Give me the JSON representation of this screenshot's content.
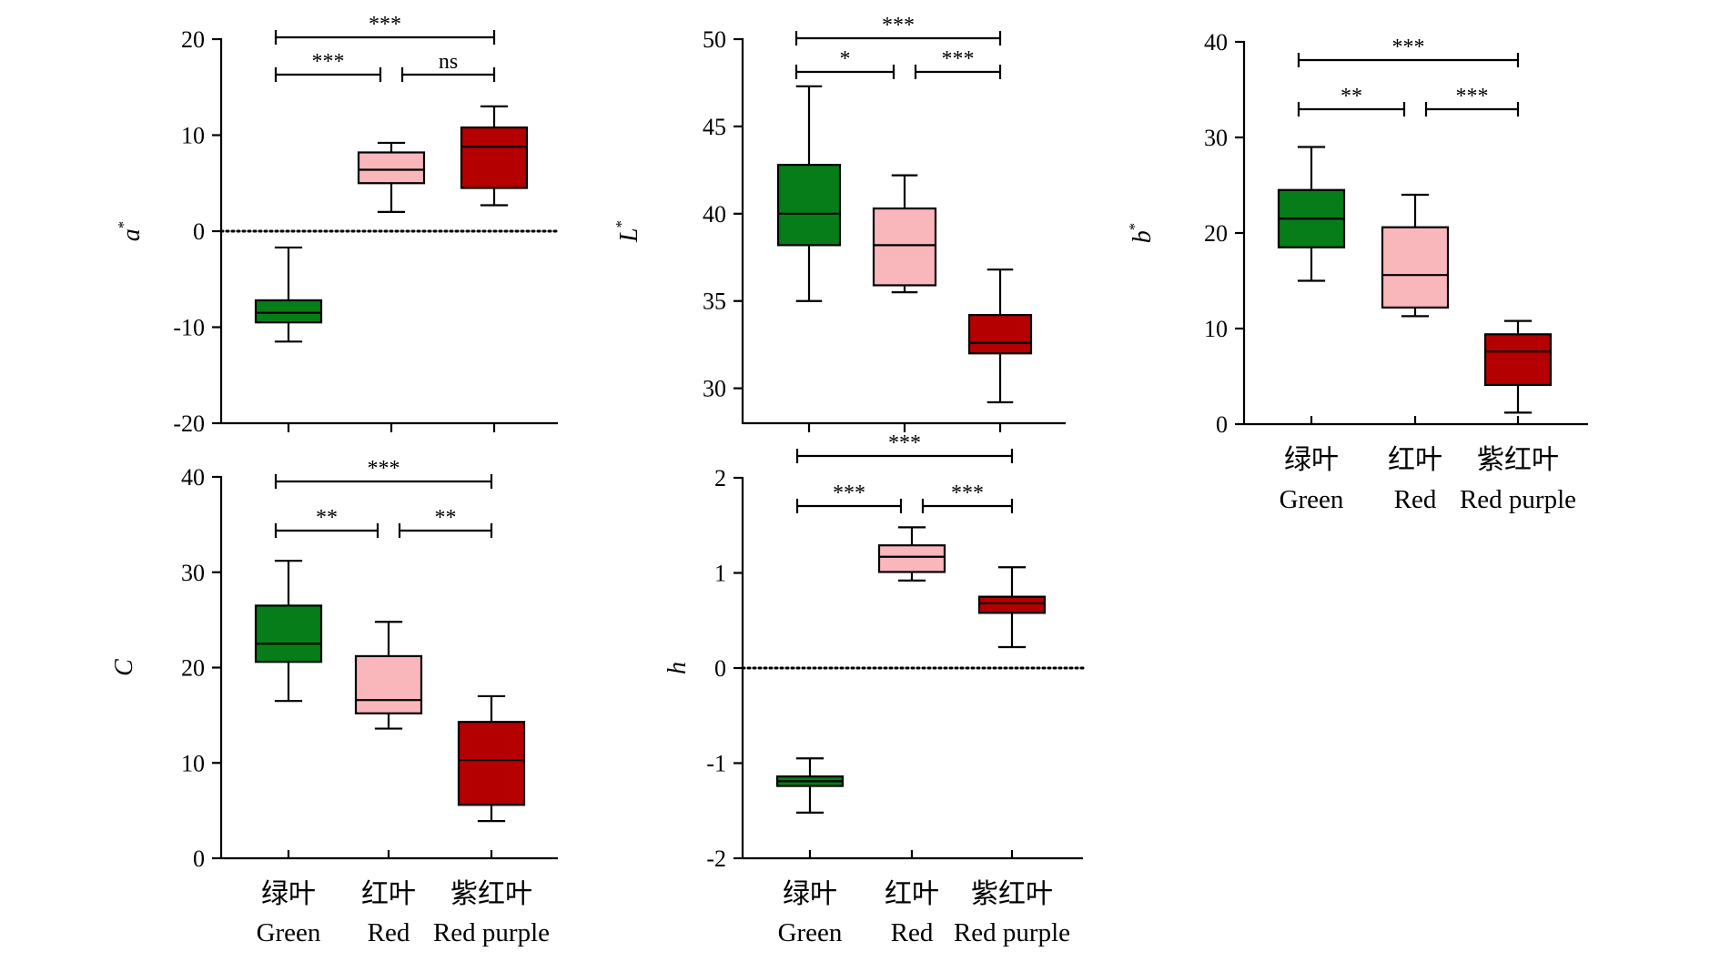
{
  "colors": {
    "green": "#067d18",
    "red": "#f9b6bb",
    "red_purple": "#b40000",
    "stroke": "#000000"
  },
  "chart_data": [
    {
      "type": "box",
      "panel": "a",
      "ylabel": "a",
      "ylabel_sup": "*",
      "ylim": [
        -20,
        20
      ],
      "yticks": [
        -20,
        -10,
        0,
        10,
        20
      ],
      "ytick_labels": [
        "-20",
        "-10",
        "0",
        "10",
        "20"
      ],
      "reference_line": 0,
      "show_categories": false,
      "categories_zh": [],
      "categories_en": [],
      "boxes": [
        {
          "color": "green",
          "min": -11.5,
          "q1": -9.5,
          "median": -8.5,
          "q3": -7.2,
          "max": -1.7
        },
        {
          "color": "red",
          "min": 2.0,
          "q1": 5.0,
          "median": 6.4,
          "q3": 8.2,
          "max": 9.2
        },
        {
          "color": "red_purple",
          "min": 2.7,
          "q1": 4.5,
          "median": 8.8,
          "q3": 10.8,
          "max": 13.0
        }
      ],
      "comparisons": [
        {
          "from": 0,
          "to": 1,
          "level": 0,
          "label": "***"
        },
        {
          "from": 1,
          "to": 2,
          "level": 0,
          "label": "ns"
        },
        {
          "from": 0,
          "to": 2,
          "level": 1,
          "label": "***"
        }
      ]
    },
    {
      "type": "box",
      "panel": "L",
      "ylabel": "L",
      "ylabel_sup": "*",
      "ylim": [
        28,
        50
      ],
      "yticks": [
        30,
        35,
        40,
        45,
        50
      ],
      "ytick_labels": [
        "30",
        "35",
        "40",
        "45",
        "50"
      ],
      "reference_line": null,
      "show_categories": false,
      "categories_zh": [],
      "categories_en": [],
      "boxes": [
        {
          "color": "green",
          "min": 35.0,
          "q1": 38.2,
          "median": 40.0,
          "q3": 42.8,
          "max": 47.3
        },
        {
          "color": "red",
          "min": 35.5,
          "q1": 35.9,
          "median": 38.2,
          "q3": 40.3,
          "max": 42.2
        },
        {
          "color": "red_purple",
          "min": 29.2,
          "q1": 32.0,
          "median": 32.6,
          "q3": 34.2,
          "max": 36.8
        }
      ],
      "comparisons": [
        {
          "from": 0,
          "to": 1,
          "level": 0,
          "label": "*"
        },
        {
          "from": 1,
          "to": 2,
          "level": 0,
          "label": "***"
        },
        {
          "from": 0,
          "to": 2,
          "level": 1,
          "label": "***"
        }
      ]
    },
    {
      "type": "box",
      "panel": "b",
      "ylabel": "b",
      "ylabel_sup": "*",
      "ylim": [
        0,
        40
      ],
      "yticks": [
        0,
        10,
        20,
        30,
        40
      ],
      "ytick_labels": [
        "0",
        "10",
        "20",
        "30",
        "40"
      ],
      "reference_line": null,
      "show_categories": true,
      "categories_zh": [
        "绿叶",
        "红叶",
        "紫红叶"
      ],
      "categories_en": [
        "Green",
        "Red",
        "Red purple"
      ],
      "boxes": [
        {
          "color": "green",
          "min": 15.0,
          "q1": 18.5,
          "median": 21.5,
          "q3": 24.5,
          "max": 29.0
        },
        {
          "color": "red",
          "min": 11.3,
          "q1": 12.2,
          "median": 15.6,
          "q3": 20.6,
          "max": 24.0
        },
        {
          "color": "red_purple",
          "min": 1.2,
          "q1": 4.1,
          "median": 7.6,
          "q3": 9.4,
          "max": 10.8
        }
      ],
      "comparisons": [
        {
          "from": 0,
          "to": 1,
          "level": 0,
          "label": "**"
        },
        {
          "from": 1,
          "to": 2,
          "level": 0,
          "label": "***"
        },
        {
          "from": 0,
          "to": 2,
          "level": 1,
          "label": "***"
        }
      ]
    },
    {
      "type": "box",
      "panel": "C",
      "ylabel": "C",
      "ylabel_sup": "",
      "ylim": [
        0,
        40
      ],
      "yticks": [
        0,
        10,
        20,
        30,
        40
      ],
      "ytick_labels": [
        "0",
        "10",
        "20",
        "30",
        "40"
      ],
      "reference_line": null,
      "show_categories": true,
      "categories_zh": [
        "绿叶",
        "红叶",
        "紫红叶"
      ],
      "categories_en": [
        "Green",
        "Red",
        "Red purple"
      ],
      "boxes": [
        {
          "color": "green",
          "min": 16.5,
          "q1": 20.6,
          "median": 22.5,
          "q3": 26.5,
          "max": 31.2
        },
        {
          "color": "red",
          "min": 13.6,
          "q1": 15.2,
          "median": 16.6,
          "q3": 21.2,
          "max": 24.8
        },
        {
          "color": "red_purple",
          "min": 3.9,
          "q1": 5.6,
          "median": 10.3,
          "q3": 14.3,
          "max": 17.0
        }
      ],
      "comparisons": [
        {
          "from": 0,
          "to": 1,
          "level": 0,
          "label": "**"
        },
        {
          "from": 1,
          "to": 2,
          "level": 0,
          "label": "**"
        },
        {
          "from": 0,
          "to": 2,
          "level": 1,
          "label": "***"
        }
      ]
    },
    {
      "type": "box",
      "panel": "h",
      "ylabel": "h",
      "ylabel_sup": "",
      "ylim": [
        -2,
        2
      ],
      "yticks": [
        -2,
        -1,
        0,
        1,
        2
      ],
      "ytick_labels": [
        "-2",
        "-1",
        "0",
        "1",
        "2"
      ],
      "reference_line": 0,
      "show_categories": true,
      "categories_zh": [
        "绿叶",
        "红叶",
        "紫红叶"
      ],
      "categories_en": [
        "Green",
        "Red",
        "Red purple"
      ],
      "boxes": [
        {
          "color": "green",
          "min": -1.52,
          "q1": -1.24,
          "median": -1.19,
          "q3": -1.14,
          "max": -0.95
        },
        {
          "color": "red",
          "min": 0.92,
          "q1": 1.01,
          "median": 1.17,
          "q3": 1.29,
          "max": 1.48
        },
        {
          "color": "red_purple",
          "min": 0.22,
          "q1": 0.58,
          "median": 0.68,
          "q3": 0.75,
          "max": 1.06
        }
      ],
      "comparisons": [
        {
          "from": 0,
          "to": 1,
          "level": 0,
          "label": "***"
        },
        {
          "from": 1,
          "to": 2,
          "level": 0,
          "label": "***"
        },
        {
          "from": 0,
          "to": 2,
          "level": 1,
          "label": "***"
        }
      ]
    }
  ]
}
